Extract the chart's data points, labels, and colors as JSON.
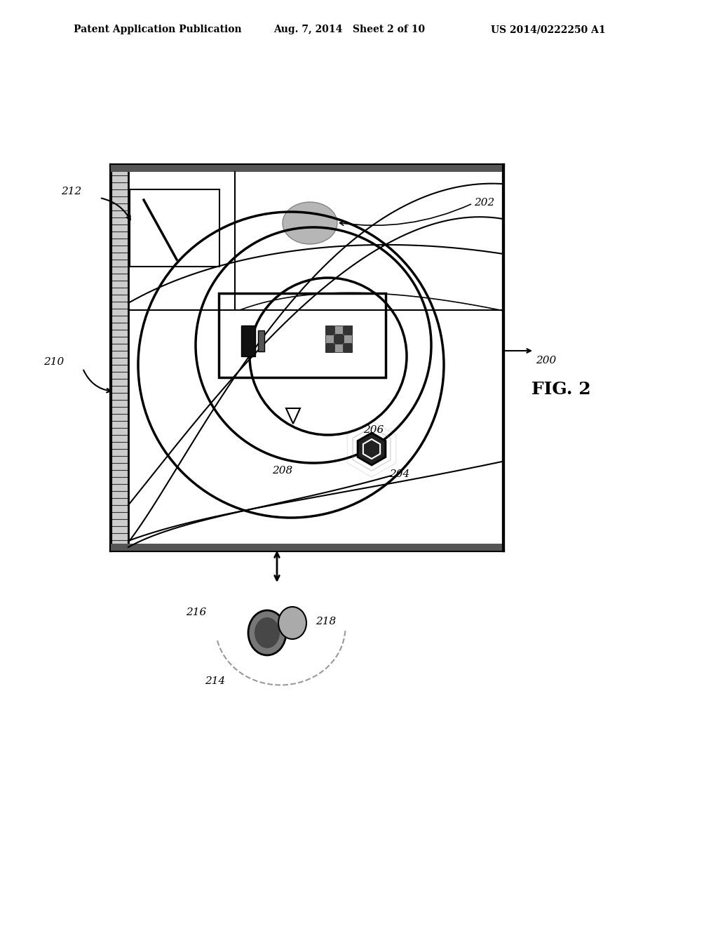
{
  "bg_color": "#ffffff",
  "header_text1": "Patent Application Publication",
  "header_text2": "Aug. 7, 2014   Sheet 2 of 10",
  "header_text3": "US 2014/0222250 A1",
  "fig_label": "FIG. 2",
  "label_200": "200",
  "label_202": "202",
  "label_204": "204",
  "label_206": "206",
  "label_208": "208",
  "label_210": "210",
  "label_212": "212",
  "label_214": "214",
  "label_216": "216",
  "label_218": "218"
}
